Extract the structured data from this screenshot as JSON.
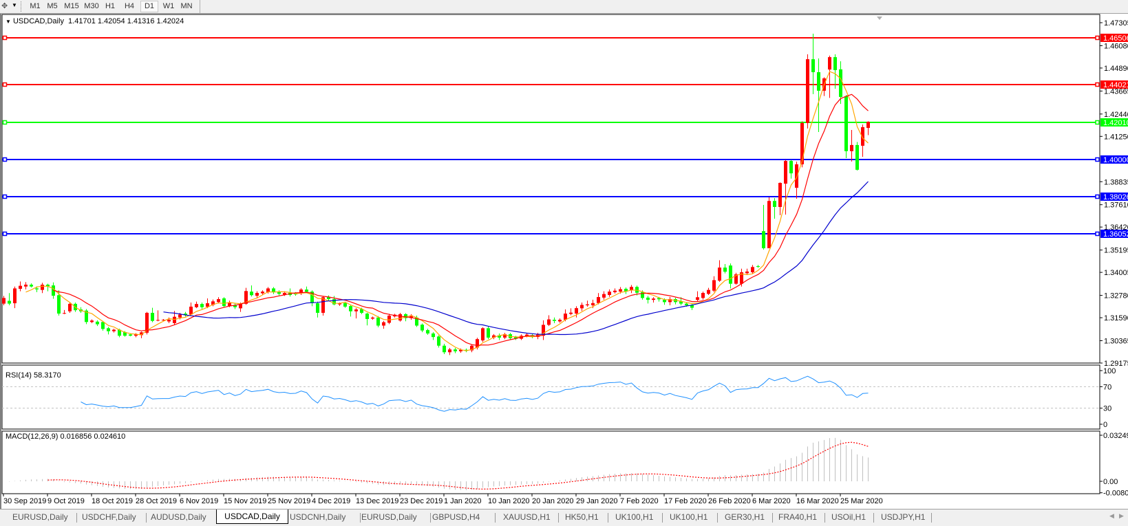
{
  "toolbar": {
    "timeframes": [
      "M1",
      "M5",
      "M15",
      "M30",
      "H1",
      "H4",
      "D1",
      "W1",
      "MN"
    ],
    "active_timeframe": "D1",
    "icons": [
      "crosshair-tool-icon",
      "dropdown-arrow-icon"
    ]
  },
  "chart": {
    "header": "USDCAD,Daily  1.41701 1.42054 1.41316 1.42024",
    "symbol": "USDCAD,Daily",
    "rsi_label": "RSI(14) 58.3170",
    "macd_label": "MACD(12,26,9) 0.016856 0.024610"
  },
  "tabs": [
    "EURUSD,Daily",
    "USDCHF,Daily",
    "AUDUSD,Daily",
    "USDCAD,Daily",
    "USDCNH,Daily",
    "EURUSD,Daily",
    "GBPUSD,H4",
    "XAUUSD,H1",
    "HK50,H1",
    "UK100,H1",
    "UK100,H1",
    "GER30,H1",
    "FRA40,H1",
    "USOil,H1",
    "USDJPY,H1"
  ],
  "active_tab": 3,
  "colors": {
    "bull": "#FF0000",
    "bear": "#00FF00",
    "ma_fast": "#FFA500",
    "ma_mid": "#FF0000",
    "ma_slow": "#0000CD",
    "rsi": "#1E90FF",
    "macd_hist": "#C0C0C0",
    "macd_signal": "#FF0000"
  },
  "chart_data": {
    "type": "candlestick",
    "symbol": "USDCAD",
    "timeframe": "Daily",
    "ylim": [
      1.29175,
      1.47305
    ],
    "y_ticks": [
      "1.47305",
      "1.46080",
      "1.44890",
      "1.43665",
      "1.42440",
      "1.41250",
      "1.38835",
      "1.37610",
      "1.36420",
      "1.35195",
      "1.34005",
      "1.32780",
      "1.31590",
      "1.30365",
      "1.29175"
    ],
    "x_labels": [
      "30 Sep 2019",
      "9 Oct 2019",
      "18 Oct 2019",
      "28 Oct 2019",
      "6 Nov 2019",
      "15 Nov 2019",
      "25 Nov 2019",
      "4 Dec 2019",
      "13 Dec 2019",
      "23 Dec 2019",
      "1 Jan 2020",
      "10 Jan 2020",
      "20 Jan 2020",
      "29 Jan 2020",
      "7 Feb 2020",
      "17 Feb 2020",
      "26 Feb 2020",
      "6 Mar 2020",
      "16 Mar 2020",
      "25 Mar 2020"
    ],
    "x_label_every_bars": 8,
    "moving_averages": [
      {
        "period": 5,
        "color": "#FFA500"
      },
      {
        "period": 10,
        "color": "#FF0000"
      },
      {
        "period": 30,
        "color": "#0000CD"
      }
    ],
    "horizontal_lines": [
      {
        "price": "1.46506",
        "color": "#FF0000"
      },
      {
        "price": "1.44021",
        "color": "#FF0000"
      },
      {
        "price": "1.42010",
        "color": "#00FF00"
      },
      {
        "price": "1.40000",
        "color": "#0000FF"
      },
      {
        "price": "1.38026",
        "color": "#0000FF"
      },
      {
        "price": "1.36052",
        "color": "#0000FF"
      }
    ],
    "rsi": {
      "period": 14,
      "value": 58.317,
      "levels": [
        30,
        70
      ],
      "ylim": [
        0,
        100
      ],
      "y_ticks": [
        "100",
        "70",
        "30",
        "0"
      ]
    },
    "macd": {
      "fast": 12,
      "slow": 26,
      "signal": 9,
      "main": 0.016856,
      "signal_value": 0.02461,
      "ylim": [
        -0.008086,
        0.032493
      ],
      "y_ticks": [
        "0.032493",
        "0.00",
        "-0.008086"
      ]
    },
    "ohlc": [
      [
        1.3234,
        1.3275,
        1.3225,
        1.3264
      ],
      [
        1.3249,
        1.329,
        1.3225,
        1.3234
      ],
      [
        1.3236,
        1.3325,
        1.321,
        1.3315
      ],
      [
        1.3313,
        1.3352,
        1.33,
        1.3329
      ],
      [
        1.3325,
        1.3349,
        1.331,
        1.3335
      ],
      [
        1.3335,
        1.3342,
        1.332,
        1.3325
      ],
      [
        1.3315,
        1.3326,
        1.3295,
        1.331
      ],
      [
        1.3307,
        1.3345,
        1.329,
        1.3335
      ],
      [
        1.3335,
        1.334,
        1.33,
        1.3327
      ],
      [
        1.3331,
        1.3347,
        1.326,
        1.3276
      ],
      [
        1.3279,
        1.3305,
        1.317,
        1.3181
      ],
      [
        1.3182,
        1.32,
        1.3178,
        1.3184
      ],
      [
        1.3193,
        1.324,
        1.3185,
        1.3233
      ],
      [
        1.3233,
        1.324,
        1.319,
        1.3199
      ],
      [
        1.3203,
        1.3215,
        1.3185,
        1.3193
      ],
      [
        1.3197,
        1.3205,
        1.3125,
        1.3136
      ],
      [
        1.3136,
        1.315,
        1.313,
        1.3144
      ],
      [
        1.3138,
        1.3145,
        1.3115,
        1.3124
      ],
      [
        1.3136,
        1.3142,
        1.309,
        1.3099
      ],
      [
        1.3103,
        1.311,
        1.307,
        1.3087
      ],
      [
        1.3087,
        1.31,
        1.308,
        1.3095
      ],
      [
        1.3095,
        1.31,
        1.3055,
        1.3063
      ],
      [
        1.3082,
        1.3088,
        1.3058,
        1.3063
      ],
      [
        1.307,
        1.3075,
        1.306,
        1.3063
      ],
      [
        1.3063,
        1.3077,
        1.3055,
        1.3071
      ],
      [
        1.3066,
        1.3085,
        1.305,
        1.3081
      ],
      [
        1.3079,
        1.319,
        1.307,
        1.3185
      ],
      [
        1.3185,
        1.3212,
        1.3135,
        1.3142
      ],
      [
        1.3144,
        1.3198,
        1.314,
        1.3147
      ],
      [
        1.3146,
        1.3152,
        1.314,
        1.3148
      ],
      [
        1.3139,
        1.316,
        1.313,
        1.3148
      ],
      [
        1.313,
        1.3195,
        1.312,
        1.3164
      ],
      [
        1.316,
        1.3185,
        1.315,
        1.3176
      ],
      [
        1.3181,
        1.319,
        1.3165,
        1.3172
      ],
      [
        1.3176,
        1.324,
        1.317,
        1.3218
      ],
      [
        1.3215,
        1.3245,
        1.321,
        1.3232
      ],
      [
        1.3232,
        1.324,
        1.3205,
        1.3215
      ],
      [
        1.3217,
        1.3262,
        1.321,
        1.3236
      ],
      [
        1.3227,
        1.3256,
        1.322,
        1.3246
      ],
      [
        1.3242,
        1.3268,
        1.3235,
        1.3258
      ],
      [
        1.3262,
        1.3268,
        1.3215,
        1.3221
      ],
      [
        1.3221,
        1.325,
        1.3215,
        1.324
      ],
      [
        1.3227,
        1.3235,
        1.3205,
        1.3215
      ],
      [
        1.3209,
        1.324,
        1.319,
        1.3233
      ],
      [
        1.3233,
        1.3318,
        1.3228,
        1.3301
      ],
      [
        1.3298,
        1.3331,
        1.3272,
        1.3279
      ],
      [
        1.3276,
        1.33,
        1.3265,
        1.3291
      ],
      [
        1.3289,
        1.3305,
        1.3282,
        1.3298
      ],
      [
        1.3295,
        1.3322,
        1.3288,
        1.3315
      ],
      [
        1.3315,
        1.3322,
        1.3285,
        1.3295
      ],
      [
        1.3298,
        1.3305,
        1.3278,
        1.3286
      ],
      [
        1.3282,
        1.33,
        1.3275,
        1.3291
      ],
      [
        1.3292,
        1.3315,
        1.3272,
        1.328
      ],
      [
        1.3289,
        1.3295,
        1.3276,
        1.3283
      ],
      [
        1.3289,
        1.3316,
        1.328,
        1.3309
      ],
      [
        1.3309,
        1.3325,
        1.329,
        1.3297
      ],
      [
        1.3298,
        1.3305,
        1.322,
        1.3237
      ],
      [
        1.3236,
        1.3245,
        1.316,
        1.3185
      ],
      [
        1.3185,
        1.3275,
        1.317,
        1.3268
      ],
      [
        1.327,
        1.3278,
        1.325,
        1.3258
      ],
      [
        1.3258,
        1.3275,
        1.3225,
        1.323
      ],
      [
        1.323,
        1.324,
        1.3222,
        1.3236
      ],
      [
        1.3237,
        1.3242,
        1.3212,
        1.3218
      ],
      [
        1.3221,
        1.3228,
        1.3165,
        1.3193
      ],
      [
        1.3193,
        1.321,
        1.3155,
        1.3203
      ],
      [
        1.3205,
        1.3212,
        1.3178,
        1.3185
      ],
      [
        1.3181,
        1.3186,
        1.3118,
        1.3152
      ],
      [
        1.3154,
        1.3165,
        1.3148,
        1.316
      ],
      [
        1.316,
        1.3168,
        1.3108,
        1.3117
      ],
      [
        1.3117,
        1.3142,
        1.31,
        1.3135
      ],
      [
        1.3132,
        1.318,
        1.3125,
        1.317
      ],
      [
        1.3166,
        1.318,
        1.316,
        1.3175
      ],
      [
        1.3144,
        1.3185,
        1.3138,
        1.3178
      ],
      [
        1.3178,
        1.3183,
        1.314,
        1.3157
      ],
      [
        1.3157,
        1.3178,
        1.3148,
        1.3171
      ],
      [
        1.316,
        1.317,
        1.311,
        1.3117
      ],
      [
        1.3122,
        1.3128,
        1.3082,
        1.3091
      ],
      [
        1.3093,
        1.31,
        1.3068,
        1.3075
      ],
      [
        1.3075,
        1.3082,
        1.304,
        1.3056
      ],
      [
        1.3059,
        1.3065,
        1.3,
        1.301
      ],
      [
        1.301,
        1.302,
        1.2965,
        1.2975
      ],
      [
        1.2975,
        1.2998,
        1.296,
        1.299
      ],
      [
        1.299,
        1.2998,
        1.297,
        1.298
      ],
      [
        1.298,
        1.2995,
        1.2972,
        1.2988
      ],
      [
        1.2988,
        1.2995,
        1.2975,
        1.2982
      ],
      [
        1.2985,
        1.3018,
        1.2975,
        1.301
      ],
      [
        1.3,
        1.3052,
        1.299,
        1.3045
      ],
      [
        1.3038,
        1.3108,
        1.303,
        1.3103
      ],
      [
        1.3103,
        1.3112,
        1.3045,
        1.3053
      ],
      [
        1.3053,
        1.3072,
        1.3045,
        1.3065
      ],
      [
        1.3065,
        1.3075,
        1.304,
        1.3053
      ],
      [
        1.3053,
        1.3078,
        1.3045,
        1.3071
      ],
      [
        1.3071,
        1.3078,
        1.304,
        1.305
      ],
      [
        1.3056,
        1.3062,
        1.304,
        1.3047
      ],
      [
        1.3047,
        1.307,
        1.304,
        1.3063
      ],
      [
        1.306,
        1.3075,
        1.3055,
        1.3069
      ],
      [
        1.3066,
        1.3072,
        1.305,
        1.3057
      ],
      [
        1.3057,
        1.3078,
        1.3045,
        1.3069
      ],
      [
        1.3063,
        1.3145,
        1.304,
        1.3121
      ],
      [
        1.3121,
        1.3172,
        1.3115,
        1.315
      ],
      [
        1.3148,
        1.316,
        1.313,
        1.3142
      ],
      [
        1.3139,
        1.3155,
        1.3132,
        1.3148
      ],
      [
        1.3148,
        1.3203,
        1.314,
        1.3181
      ],
      [
        1.3179,
        1.3209,
        1.3172,
        1.3186
      ],
      [
        1.3181,
        1.322,
        1.316,
        1.321
      ],
      [
        1.3209,
        1.324,
        1.3195,
        1.3227
      ],
      [
        1.3225,
        1.325,
        1.3218,
        1.323
      ],
      [
        1.3225,
        1.3255,
        1.321,
        1.3237
      ],
      [
        1.3237,
        1.329,
        1.323,
        1.3269
      ],
      [
        1.3266,
        1.33,
        1.3255,
        1.3285
      ],
      [
        1.328,
        1.331,
        1.327,
        1.3298
      ],
      [
        1.3295,
        1.3315,
        1.3288,
        1.3303
      ],
      [
        1.3298,
        1.3322,
        1.3288,
        1.3311
      ],
      [
        1.3313,
        1.332,
        1.3285,
        1.3298
      ],
      [
        1.3307,
        1.3333,
        1.329,
        1.3323
      ],
      [
        1.3323,
        1.333,
        1.3278,
        1.3292
      ],
      [
        1.3295,
        1.3305,
        1.3255,
        1.3264
      ],
      [
        1.3266,
        1.3275,
        1.3235,
        1.3254
      ],
      [
        1.3254,
        1.3268,
        1.324,
        1.3261
      ],
      [
        1.3264,
        1.327,
        1.3245,
        1.3257
      ],
      [
        1.3254,
        1.3262,
        1.3228,
        1.3242
      ],
      [
        1.3242,
        1.327,
        1.3225,
        1.3258
      ],
      [
        1.3258,
        1.3265,
        1.323,
        1.3242
      ],
      [
        1.3246,
        1.3268,
        1.3225,
        1.3234
      ],
      [
        1.3234,
        1.324,
        1.3218,
        1.3225
      ],
      [
        1.3227,
        1.3232,
        1.32,
        1.3212
      ],
      [
        1.3254,
        1.33,
        1.3245,
        1.3268
      ],
      [
        1.3264,
        1.3298,
        1.3255,
        1.3291
      ],
      [
        1.3286,
        1.3318,
        1.328,
        1.3307
      ],
      [
        1.3303,
        1.338,
        1.3295,
        1.3359
      ],
      [
        1.3356,
        1.3465,
        1.335,
        1.3426
      ],
      [
        1.3426,
        1.3445,
        1.3395,
        1.3404
      ],
      [
        1.3437,
        1.3448,
        1.3315,
        1.334
      ],
      [
        1.334,
        1.3398,
        1.3335,
        1.339
      ],
      [
        1.334,
        1.342,
        1.3325,
        1.3401
      ],
      [
        1.3396,
        1.342,
        1.3388,
        1.3405
      ],
      [
        1.3401,
        1.344,
        1.3395,
        1.3429
      ],
      [
        1.3434,
        1.344,
        1.3425,
        1.343
      ],
      [
        1.362,
        1.376,
        1.3522,
        1.3529
      ],
      [
        1.3529,
        1.38,
        1.3529,
        1.3781
      ],
      [
        1.3781,
        1.3796,
        1.3686,
        1.3749
      ],
      [
        1.3749,
        1.388,
        1.3705,
        1.3877
      ],
      [
        1.3873,
        1.4,
        1.3708,
        1.3994
      ],
      [
        1.3994,
        1.4,
        1.39,
        1.3928
      ],
      [
        1.3851,
        1.399,
        1.3793,
        1.3976
      ],
      [
        1.3976,
        1.4205,
        1.396,
        1.4196
      ],
      [
        1.4196,
        1.4562,
        1.4167,
        1.4536
      ],
      [
        1.4536,
        1.4672,
        1.435,
        1.4467
      ],
      [
        1.4467,
        1.454,
        1.4148,
        1.4368
      ],
      [
        1.4368,
        1.444,
        1.434,
        1.4434
      ],
      [
        1.4481,
        1.4555,
        1.433,
        1.4547
      ],
      [
        1.4547,
        1.4562,
        1.4379,
        1.4478
      ],
      [
        1.4482,
        1.4525,
        1.4298,
        1.4335
      ],
      [
        1.4339,
        1.4345,
        1.4009,
        1.4046
      ],
      [
        1.4046,
        1.4159,
        1.3991,
        1.4079
      ],
      [
        1.4079,
        1.4095,
        1.3943,
        1.3947
      ],
      [
        1.4075,
        1.4188,
        1.4016,
        1.4174
      ],
      [
        1.41701,
        1.42054,
        1.41316,
        1.42024
      ]
    ]
  }
}
